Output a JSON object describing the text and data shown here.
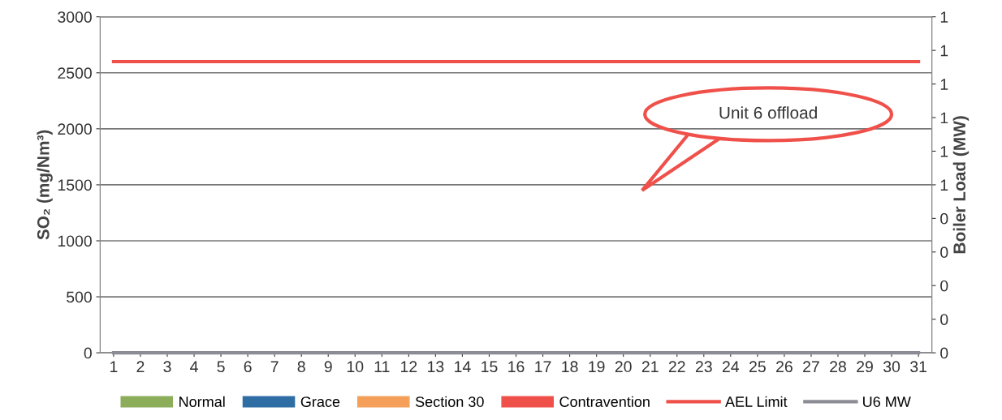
{
  "chart_data": {
    "type": "bar",
    "ylabel": "SO₂ (mg/Nm³)",
    "y2label": "Boiler Load (MW)",
    "categories": [
      "1",
      "2",
      "3",
      "4",
      "5",
      "6",
      "7",
      "8",
      "9",
      "10",
      "11",
      "12",
      "13",
      "14",
      "15",
      "16",
      "17",
      "18",
      "19",
      "20",
      "21",
      "22",
      "23",
      "24",
      "25",
      "26",
      "27",
      "28",
      "29",
      "30",
      "31"
    ],
    "series": [
      {
        "name": "Normal",
        "color": "#8cad5a",
        "values": [
          0,
          0,
          0,
          0,
          0,
          0,
          0,
          0,
          0,
          0,
          0,
          0,
          0,
          0,
          0,
          0,
          0,
          0,
          0,
          0,
          0,
          0,
          0,
          0,
          0,
          0,
          0,
          0,
          0,
          0,
          0
        ]
      },
      {
        "name": "Grace",
        "color": "#2f6ea5",
        "values": [
          0,
          0,
          0,
          0,
          0,
          0,
          0,
          0,
          0,
          0,
          0,
          0,
          0,
          0,
          0,
          0,
          0,
          0,
          0,
          0,
          0,
          0,
          0,
          0,
          0,
          0,
          0,
          0,
          0,
          0,
          0
        ]
      },
      {
        "name": "Section 30",
        "color": "#f5a05a",
        "values": [
          0,
          0,
          0,
          0,
          0,
          0,
          0,
          0,
          0,
          0,
          0,
          0,
          0,
          0,
          0,
          0,
          0,
          0,
          0,
          0,
          0,
          0,
          0,
          0,
          0,
          0,
          0,
          0,
          0,
          0,
          0
        ]
      },
      {
        "name": "Contravention",
        "color": "#f0504a",
        "values": [
          0,
          0,
          0,
          0,
          0,
          0,
          0,
          0,
          0,
          0,
          0,
          0,
          0,
          0,
          0,
          0,
          0,
          0,
          0,
          0,
          0,
          0,
          0,
          0,
          0,
          0,
          0,
          0,
          0,
          0,
          0
        ]
      },
      {
        "name": "AEL Limit",
        "type": "line",
        "color": "#f0504a",
        "values": [
          2600,
          2600,
          2600,
          2600,
          2600,
          2600,
          2600,
          2600,
          2600,
          2600,
          2600,
          2600,
          2600,
          2600,
          2600,
          2600,
          2600,
          2600,
          2600,
          2600,
          2600,
          2600,
          2600,
          2600,
          2600,
          2600,
          2600,
          2600,
          2600,
          2600,
          2600
        ]
      },
      {
        "name": "U6 MW",
        "type": "line",
        "axis": "y2",
        "color": "#8c8c96",
        "values": [
          0,
          0,
          0,
          0,
          0,
          0,
          0,
          0,
          0,
          0,
          0,
          0,
          0,
          0,
          0,
          0,
          0,
          0,
          0,
          0,
          0,
          0,
          0,
          0,
          0,
          0,
          0,
          0,
          0,
          0,
          0
        ]
      }
    ],
    "ylim": [
      0,
      3000
    ],
    "yticks": [
      0,
      500,
      1000,
      1500,
      2000,
      2500,
      3000
    ],
    "y2lim": [
      0,
      1
    ],
    "y2ticks": [
      {
        "value": 0,
        "label": "0"
      },
      {
        "value": 0.1,
        "label": "0"
      },
      {
        "value": 0.2,
        "label": "0"
      },
      {
        "value": 0.3,
        "label": "0"
      },
      {
        "value": 0.4,
        "label": "0"
      },
      {
        "value": 0.5,
        "label": "1"
      },
      {
        "value": 0.6,
        "label": "1"
      },
      {
        "value": 0.7,
        "label": "1"
      },
      {
        "value": 0.8,
        "label": "1"
      },
      {
        "value": 0.9,
        "label": "1"
      },
      {
        "value": 1,
        "label": "1"
      }
    ],
    "annotations": [
      "Unit 6 offload"
    ],
    "grid": "y",
    "legend": "bottom",
    "marker": "none",
    "line_style": "solid"
  }
}
